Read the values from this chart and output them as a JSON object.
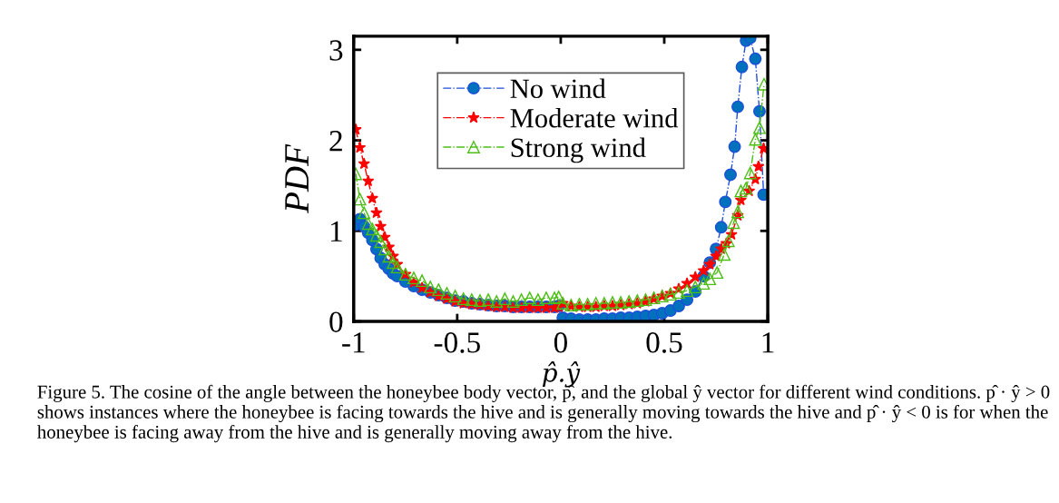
{
  "chart_data": {
    "type": "line",
    "xlabel": "p̂.ŷ",
    "ylabel": "PDF",
    "xlim": [
      -1,
      1
    ],
    "ylim": [
      0,
      3.15
    ],
    "xticks": [
      -1,
      -0.5,
      0,
      0.5,
      1
    ],
    "yticks": [
      0,
      1,
      2,
      3
    ],
    "grid": false,
    "legend": "top",
    "line_style": "dashdot",
    "series": [
      {
        "name": "No wind",
        "color": "#0072bd",
        "marker": "circle",
        "x": [
          -0.99,
          -0.97,
          -0.95,
          -0.93,
          -0.91,
          -0.89,
          -0.87,
          -0.85,
          -0.83,
          -0.81,
          -0.79,
          -0.75,
          -0.71,
          -0.67,
          -0.63,
          -0.59,
          -0.55,
          -0.51,
          -0.47,
          -0.43,
          -0.39,
          -0.35,
          -0.31,
          -0.27,
          -0.23,
          -0.19,
          -0.15,
          -0.11,
          -0.07,
          -0.03,
          -0.01,
          0.01,
          0.05,
          0.09,
          0.13,
          0.17,
          0.21,
          0.25,
          0.29,
          0.33,
          0.37,
          0.41,
          0.45,
          0.49,
          0.53,
          0.57,
          0.61,
          0.65,
          0.69,
          0.72,
          0.75,
          0.775,
          0.795,
          0.82,
          0.84,
          0.855,
          0.875,
          0.895,
          0.915,
          0.94,
          0.96,
          0.98
        ],
        "values": [
          1.07,
          1.13,
          1.05,
          0.98,
          0.9,
          0.8,
          0.7,
          0.63,
          0.58,
          0.53,
          0.5,
          0.44,
          0.39,
          0.35,
          0.32,
          0.29,
          0.26,
          0.23,
          0.22,
          0.2,
          0.19,
          0.18,
          0.17,
          0.17,
          0.16,
          0.16,
          0.16,
          0.16,
          0.16,
          0.16,
          0.17,
          0.04,
          0.03,
          0.02,
          0.02,
          0.02,
          0.03,
          0.03,
          0.04,
          0.04,
          0.05,
          0.06,
          0.07,
          0.09,
          0.12,
          0.17,
          0.24,
          0.33,
          0.5,
          0.65,
          0.8,
          1.04,
          1.32,
          1.62,
          1.93,
          2.37,
          2.81,
          3.1,
          3.13,
          2.9,
          2.32,
          1.4
        ]
      },
      {
        "name": "Moderate wind",
        "color": "#ff0000",
        "marker": "star",
        "x": [
          -0.99,
          -0.97,
          -0.95,
          -0.93,
          -0.91,
          -0.89,
          -0.87,
          -0.85,
          -0.83,
          -0.81,
          -0.79,
          -0.75,
          -0.71,
          -0.67,
          -0.63,
          -0.59,
          -0.55,
          -0.51,
          -0.47,
          -0.43,
          -0.39,
          -0.35,
          -0.31,
          -0.27,
          -0.23,
          -0.19,
          -0.15,
          -0.11,
          -0.07,
          -0.03,
          -0.01,
          0.01,
          0.05,
          0.09,
          0.13,
          0.17,
          0.21,
          0.25,
          0.29,
          0.33,
          0.37,
          0.41,
          0.45,
          0.49,
          0.53,
          0.57,
          0.61,
          0.65,
          0.69,
          0.72,
          0.75,
          0.775,
          0.8,
          0.825,
          0.855,
          0.87,
          0.91,
          0.94,
          0.955,
          0.98
        ],
        "values": [
          2.12,
          1.92,
          1.74,
          1.55,
          1.36,
          1.2,
          1.05,
          0.93,
          0.82,
          0.72,
          0.63,
          0.52,
          0.43,
          0.37,
          0.32,
          0.28,
          0.25,
          0.22,
          0.2,
          0.19,
          0.18,
          0.17,
          0.16,
          0.16,
          0.15,
          0.15,
          0.15,
          0.15,
          0.15,
          0.15,
          0.16,
          0.2,
          0.17,
          0.16,
          0.16,
          0.16,
          0.17,
          0.17,
          0.18,
          0.19,
          0.2,
          0.22,
          0.25,
          0.28,
          0.31,
          0.36,
          0.42,
          0.49,
          0.56,
          0.63,
          0.72,
          0.8,
          0.86,
          0.96,
          1.17,
          1.34,
          1.44,
          1.57,
          1.71,
          1.91
        ]
      },
      {
        "name": "Strong wind",
        "color": "#4dbe16",
        "marker": "triangle",
        "x": [
          -0.99,
          -0.97,
          -0.95,
          -0.93,
          -0.91,
          -0.89,
          -0.87,
          -0.85,
          -0.83,
          -0.81,
          -0.79,
          -0.75,
          -0.71,
          -0.67,
          -0.63,
          -0.59,
          -0.55,
          -0.51,
          -0.47,
          -0.43,
          -0.39,
          -0.35,
          -0.31,
          -0.27,
          -0.23,
          -0.19,
          -0.15,
          -0.11,
          -0.07,
          -0.03,
          -0.01,
          0.01,
          0.05,
          0.09,
          0.13,
          0.17,
          0.21,
          0.25,
          0.29,
          0.33,
          0.37,
          0.41,
          0.45,
          0.49,
          0.53,
          0.57,
          0.61,
          0.65,
          0.69,
          0.72,
          0.755,
          0.79,
          0.81,
          0.835,
          0.855,
          0.87,
          0.895,
          0.915,
          0.94,
          0.96,
          0.982
        ],
        "values": [
          1.63,
          1.35,
          1.2,
          1.08,
          1.02,
          0.95,
          0.88,
          0.8,
          0.72,
          0.65,
          0.6,
          0.52,
          0.48,
          0.45,
          0.38,
          0.35,
          0.31,
          0.28,
          0.25,
          0.24,
          0.23,
          0.24,
          0.22,
          0.25,
          0.22,
          0.24,
          0.26,
          0.24,
          0.26,
          0.26,
          0.27,
          0.2,
          0.18,
          0.19,
          0.19,
          0.2,
          0.2,
          0.21,
          0.21,
          0.22,
          0.23,
          0.24,
          0.26,
          0.28,
          0.3,
          0.32,
          0.34,
          0.38,
          0.42,
          0.47,
          0.54,
          0.74,
          0.89,
          1.09,
          1.21,
          1.44,
          1.47,
          1.64,
          2.01,
          2.14,
          2.62
        ]
      }
    ],
    "annotations": [
      "Figure 5. The cosine of the angle between the honeybee body vector, p̂, and the global ŷ vector for different wind conditions. p̂ · ŷ > 0 shows instances where the honeybee is facing towards the hive and is generally moving towards the hive and p̂ · ŷ < 0 is for when the honeybee is facing away from the hive and is generally moving away from the hive."
    ]
  }
}
